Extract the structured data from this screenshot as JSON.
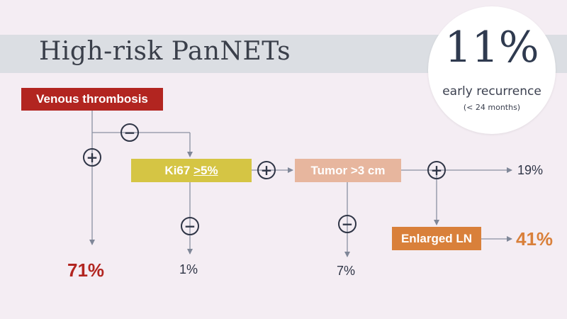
{
  "slide": {
    "title": "High-risk PanNETs",
    "badge": {
      "big": "11%",
      "label": "early recurrence",
      "sub": "(< 24 months)"
    }
  },
  "nodes": {
    "venous": "Venous thrombosis",
    "ki67_prefix": "Ki67 ",
    "ki67_value": ">5%",
    "tumor": "Tumor >3 cm",
    "enlarged": "Enlarged LN"
  },
  "signs": {
    "plus": "+",
    "minus": "−"
  },
  "outcomes": {
    "venous_positive": "71%",
    "ki67_negative": "1%",
    "tumor_negative": "7%",
    "tumor_positive_ln_negative": "19%",
    "ln_positive": "41%"
  },
  "colors": {
    "venous": "#b22520",
    "ki67": "#d5c544",
    "tumor": "#e7b69e",
    "enlarged": "#d9803a",
    "outcome_71": "#b22520",
    "outcome_41": "#d9803a"
  }
}
